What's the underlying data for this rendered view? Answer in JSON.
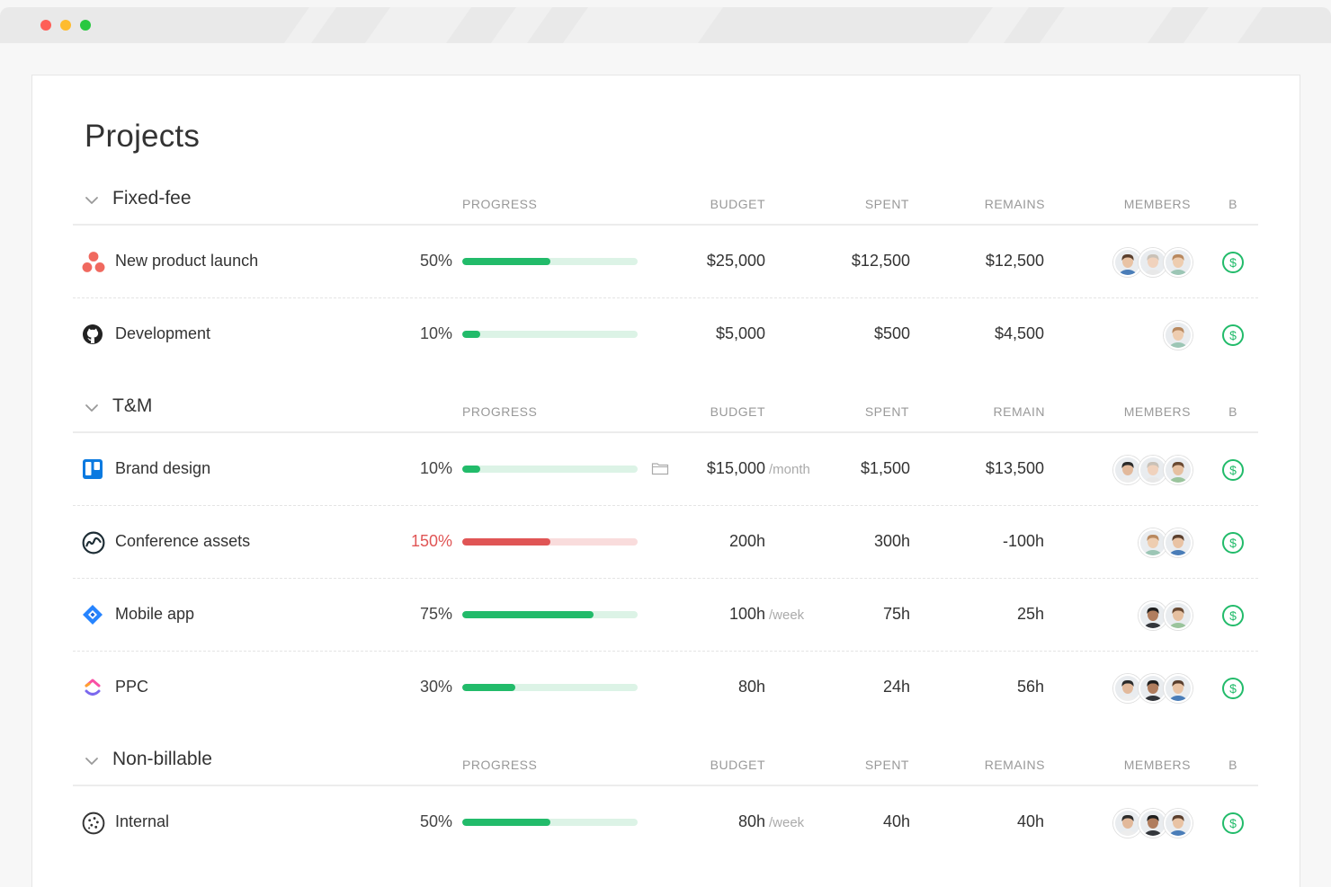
{
  "page": {
    "title": "Projects"
  },
  "groups": [
    {
      "name": "Fixed-fee",
      "headers": {
        "progress": "PROGRESS",
        "budget": "BUDGET",
        "spent": "SPENT",
        "remains": "REMAINS",
        "members": "MEMBERS",
        "b": "B"
      },
      "projects": [
        {
          "name": "New product launch",
          "icon": "asana-icon",
          "progress_label": "50%",
          "progress": 0.5,
          "budget": "$25,000",
          "unit": "",
          "spent": "$12,500",
          "remains": "$12,500",
          "members": [
            "a1",
            "a2",
            "a3"
          ]
        },
        {
          "name": "Development",
          "icon": "github-icon",
          "progress_label": "10%",
          "progress": 0.1,
          "budget": "$5,000",
          "unit": "",
          "spent": "$500",
          "remains": "$4,500",
          "members": [
            "a3"
          ]
        }
      ]
    },
    {
      "name": "T&M",
      "headers": {
        "progress": "PROGRESS",
        "budget": "BUDGET",
        "spent": "SPENT",
        "remains": "REMAIN",
        "members": "MEMBERS",
        "b": "B"
      },
      "projects": [
        {
          "name": "Brand design",
          "icon": "trello-icon",
          "progress_label": "10%",
          "progress": 0.1,
          "budget": "$15,000",
          "unit": "/month",
          "spent": "$1,500",
          "remains": "$13,500",
          "members": [
            "a4",
            "a2",
            "a5"
          ]
        },
        {
          "name": "Conference assets",
          "icon": "basecamp-icon",
          "progress_label": "150%",
          "progress": 1.5,
          "budget": "200h",
          "unit": "",
          "spent": "300h",
          "remains": "-100h",
          "members": [
            "a3",
            "a1"
          ]
        },
        {
          "name": "Mobile app",
          "icon": "jira-icon",
          "progress_label": "75%",
          "progress": 0.75,
          "budget": "100h",
          "unit": "/week",
          "spent": "75h",
          "remains": "25h",
          "members": [
            "a6",
            "a5"
          ]
        },
        {
          "name": "PPC",
          "icon": "clickup-icon",
          "progress_label": "30%",
          "progress": 0.3,
          "budget": "80h",
          "unit": "",
          "spent": "24h",
          "remains": "56h",
          "members": [
            "a4",
            "a6",
            "a1"
          ]
        }
      ]
    },
    {
      "name": "Non-billable",
      "headers": {
        "progress": "PROGRESS",
        "budget": "BUDGET",
        "spent": "SPENT",
        "remains": "REMAINS",
        "members": "MEMBERS",
        "b": "B"
      },
      "projects": [
        {
          "name": "Internal",
          "icon": "internal-icon",
          "progress_label": "50%",
          "progress": 0.5,
          "budget": "80h",
          "unit": "/week",
          "spent": "40h",
          "remains": "40h",
          "members": [
            "a4",
            "a6",
            "a1"
          ]
        }
      ]
    }
  ],
  "colors": {
    "progress": "#22bb6a",
    "progress_track": "#dcf3e6",
    "over": "#e05555",
    "over_track": "#f9dcdc",
    "billable": "#22bb6a"
  }
}
